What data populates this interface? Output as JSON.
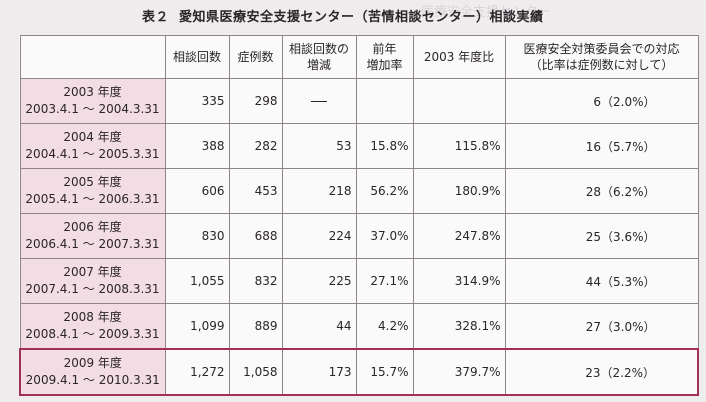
{
  "title": {
    "label": "表２",
    "text": "愛知県医療安全支援センター（苦情相談センター）相談実績"
  },
  "table": {
    "headers": [
      {
        "lines": [
          ""
        ]
      },
      {
        "lines": [
          "相談回数"
        ]
      },
      {
        "lines": [
          "症例数"
        ]
      },
      {
        "lines": [
          "相談回数の",
          "増減"
        ]
      },
      {
        "lines": [
          "前年",
          "増加率"
        ]
      },
      {
        "lines": [
          "2003 年度比"
        ]
      },
      {
        "lines": [
          "医療安全対策委員会での対応",
          "（比率は症例数に対して）"
        ]
      }
    ],
    "rows": [
      {
        "year": "2003 年度",
        "period": "2003.4.1 ～ 2004.3.31",
        "consultations": "335",
        "cases": "298",
        "change": "—",
        "growth": "",
        "vs2003": "",
        "response": "6（2.0%）"
      },
      {
        "year": "2004 年度",
        "period": "2004.4.1 ～ 2005.3.31",
        "consultations": "388",
        "cases": "282",
        "change": "53",
        "growth": "15.8%",
        "vs2003": "115.8%",
        "response": "16（5.7%）"
      },
      {
        "year": "2005 年度",
        "period": "2005.4.1 ～ 2006.3.31",
        "consultations": "606",
        "cases": "453",
        "change": "218",
        "growth": "56.2%",
        "vs2003": "180.9%",
        "response": "28（6.2%）"
      },
      {
        "year": "2006 年度",
        "period": "2006.4.1 ～ 2007.3.31",
        "consultations": "830",
        "cases": "688",
        "change": "224",
        "growth": "37.0%",
        "vs2003": "247.8%",
        "response": "25（3.6%）"
      },
      {
        "year": "2007 年度",
        "period": "2007.4.1 ～ 2008.3.31",
        "consultations": "1,055",
        "cases": "832",
        "change": "225",
        "growth": "27.1%",
        "vs2003": "314.9%",
        "response": "44（5.3%）"
      },
      {
        "year": "2008 年度",
        "period": "2008.4.1 ～ 2009.3.31",
        "consultations": "1,099",
        "cases": "889",
        "change": "44",
        "growth": "4.2%",
        "vs2003": "328.1%",
        "response": "27（3.0%）"
      },
      {
        "year": "2009 年度",
        "period": "2009.4.1 ～ 2010.3.31",
        "consultations": "1,272",
        "cases": "1,058",
        "change": "173",
        "growth": "15.7%",
        "vs2003": "379.7%",
        "response": "23（2.2%）"
      }
    ]
  }
}
